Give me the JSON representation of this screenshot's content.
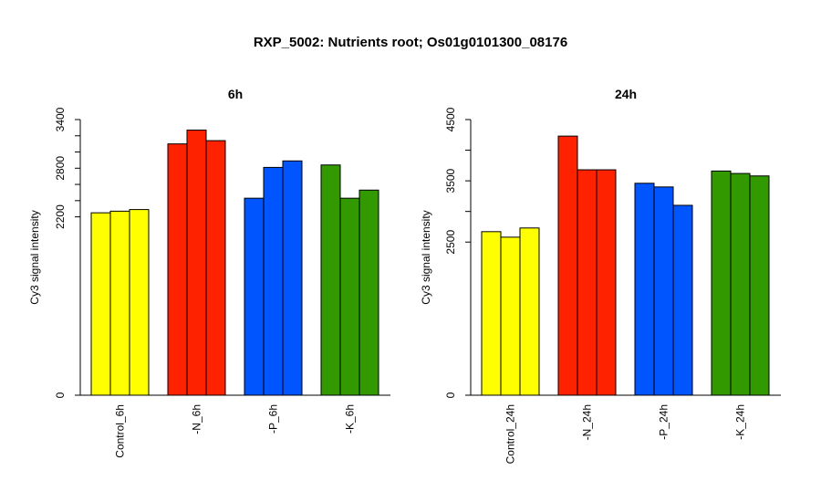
{
  "title": "RXP_5002: Nutrients root; Os01g0101300_08176",
  "chart_data": [
    {
      "type": "bar",
      "title": "6h",
      "ylabel": "Cy3 signal intensity",
      "ylim": [
        0,
        3400
      ],
      "yticks": [
        0,
        2200,
        2800,
        3400
      ],
      "yticks_minor": [
        2400,
        2600,
        3000,
        3200
      ],
      "groups": [
        {
          "label": "Control_6h",
          "color": "#ffff00",
          "values": [
            2250,
            2270,
            2290
          ]
        },
        {
          "label": "-N_6h",
          "color": "#ff2200",
          "values": [
            3100,
            3270,
            3140
          ]
        },
        {
          "label": "-P_6h",
          "color": "#0055ff",
          "values": [
            2430,
            2810,
            2890
          ]
        },
        {
          "label": "-K_6h",
          "color": "#339900",
          "values": [
            2840,
            2430,
            2530
          ]
        }
      ]
    },
    {
      "type": "bar",
      "title": "24h",
      "ylabel": "Cy3 signal intensity",
      "ylim": [
        0,
        4500
      ],
      "yticks": [
        0,
        2500,
        3500,
        4500
      ],
      "yticks_minor": [
        3000,
        4000
      ],
      "groups": [
        {
          "label": "Control_24h",
          "color": "#ffff00",
          "values": [
            2670,
            2580,
            2730
          ]
        },
        {
          "label": "-N_24h",
          "color": "#ff2200",
          "values": [
            4230,
            3680,
            3680
          ]
        },
        {
          "label": "-P_24h",
          "color": "#0055ff",
          "values": [
            3460,
            3400,
            3100
          ]
        },
        {
          "label": "-K_24h",
          "color": "#339900",
          "values": [
            3660,
            3620,
            3580
          ]
        }
      ]
    }
  ]
}
